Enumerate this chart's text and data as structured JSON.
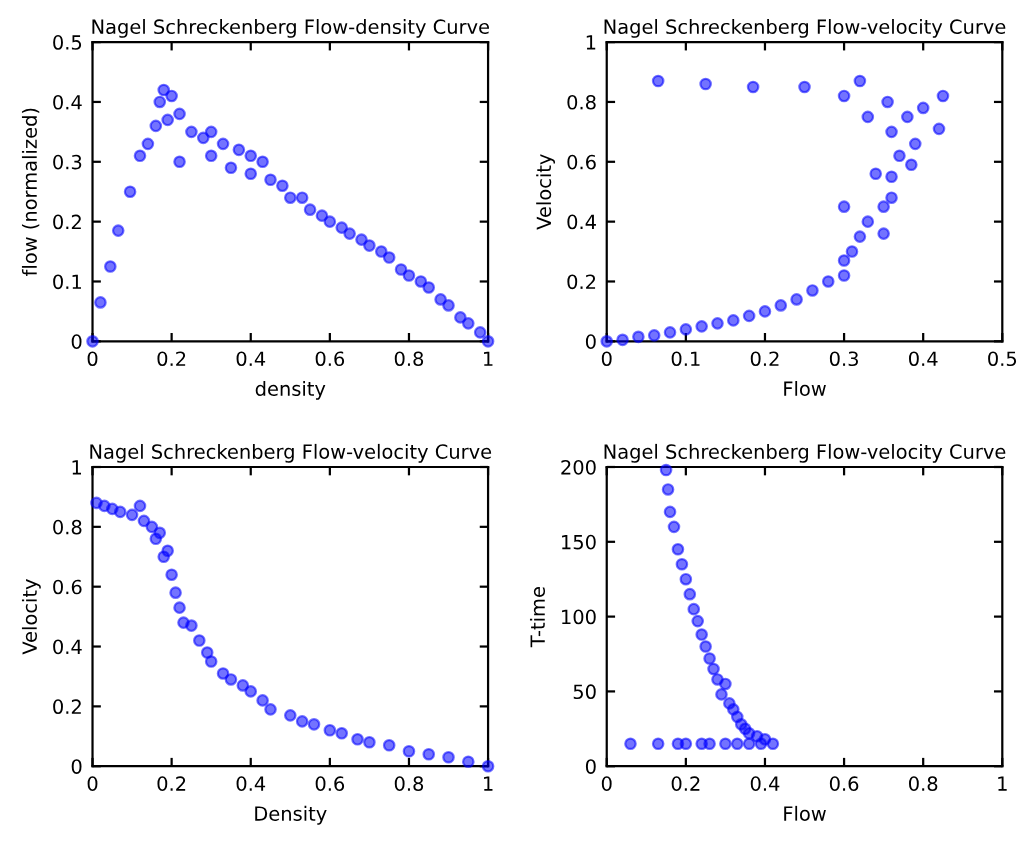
{
  "chart_data": [
    {
      "type": "scatter",
      "title": "Nagel Schreckenberg Flow-density Curve",
      "xlabel": "density",
      "ylabel": "flow (normalized)",
      "color": "#0000ff",
      "marker": "circle",
      "xlim": [
        0,
        1
      ],
      "ylim": [
        0,
        0.5
      ],
      "xticks": [
        0,
        0.2,
        0.4,
        0.6,
        0.8,
        1
      ],
      "yticks": [
        0,
        0.1,
        0.2,
        0.3,
        0.4,
        0.5
      ],
      "x": [
        0,
        0.02,
        0.045,
        0.065,
        0.095,
        0.12,
        0.14,
        0.16,
        0.17,
        0.18,
        0.2,
        0.19,
        0.22,
        0.22,
        0.25,
        0.28,
        0.3,
        0.3,
        0.33,
        0.35,
        0.37,
        0.4,
        0.4,
        0.43,
        0.45,
        0.48,
        0.5,
        0.53,
        0.55,
        0.58,
        0.6,
        0.63,
        0.65,
        0.68,
        0.7,
        0.73,
        0.75,
        0.78,
        0.8,
        0.83,
        0.85,
        0.88,
        0.9,
        0.93,
        0.95,
        0.98,
        1.0
      ],
      "values": [
        0,
        0.065,
        0.125,
        0.185,
        0.25,
        0.31,
        0.33,
        0.36,
        0.4,
        0.42,
        0.41,
        0.37,
        0.38,
        0.3,
        0.35,
        0.34,
        0.35,
        0.31,
        0.33,
        0.29,
        0.32,
        0.31,
        0.28,
        0.3,
        0.27,
        0.26,
        0.24,
        0.24,
        0.22,
        0.21,
        0.2,
        0.19,
        0.18,
        0.17,
        0.16,
        0.15,
        0.14,
        0.12,
        0.11,
        0.1,
        0.09,
        0.07,
        0.06,
        0.04,
        0.03,
        0.015,
        0
      ]
    },
    {
      "type": "scatter",
      "title": "Nagel Schreckenberg Flow-velocity Curve",
      "xlabel": "Flow",
      "ylabel": "Velocity",
      "color": "#0000ff",
      "marker": "circle",
      "xlim": [
        0,
        0.5
      ],
      "ylim": [
        0,
        1
      ],
      "xticks": [
        0,
        0.1,
        0.2,
        0.3,
        0.4,
        0.5
      ],
      "yticks": [
        0,
        0.2,
        0.4,
        0.6,
        0.8,
        1
      ],
      "x": [
        0.065,
        0.125,
        0.185,
        0.25,
        0.3,
        0.32,
        0.33,
        0.355,
        0.36,
        0.38,
        0.4,
        0.425,
        0.37,
        0.39,
        0.42,
        0.385,
        0.36,
        0.34,
        0.36,
        0.35,
        0.3,
        0.33,
        0.35,
        0.32,
        0.31,
        0.3,
        0.3,
        0.28,
        0.26,
        0.24,
        0.22,
        0.2,
        0.18,
        0.16,
        0.14,
        0.12,
        0.1,
        0.08,
        0.06,
        0.04,
        0.02,
        0
      ],
      "values": [
        0.87,
        0.86,
        0.85,
        0.85,
        0.82,
        0.87,
        0.75,
        0.8,
        0.7,
        0.75,
        0.78,
        0.82,
        0.62,
        0.66,
        0.71,
        0.59,
        0.55,
        0.56,
        0.48,
        0.45,
        0.45,
        0.4,
        0.36,
        0.35,
        0.3,
        0.27,
        0.22,
        0.2,
        0.17,
        0.14,
        0.12,
        0.1,
        0.085,
        0.07,
        0.06,
        0.05,
        0.04,
        0.03,
        0.02,
        0.015,
        0.005,
        0
      ]
    },
    {
      "type": "scatter",
      "title": "Nagel Schreckenberg Flow-velocity Curve",
      "xlabel": "Density",
      "ylabel": "Velocity",
      "color": "#0000ff",
      "marker": "circle",
      "xlim": [
        0,
        1
      ],
      "ylim": [
        0,
        1
      ],
      "xticks": [
        0,
        0.2,
        0.4,
        0.6,
        0.8,
        1
      ],
      "yticks": [
        0,
        0.2,
        0.4,
        0.6,
        0.8,
        1
      ],
      "x": [
        0.01,
        0.03,
        0.05,
        0.07,
        0.1,
        0.12,
        0.13,
        0.15,
        0.16,
        0.17,
        0.18,
        0.19,
        0.2,
        0.21,
        0.22,
        0.23,
        0.25,
        0.27,
        0.29,
        0.3,
        0.33,
        0.35,
        0.38,
        0.4,
        0.43,
        0.45,
        0.5,
        0.53,
        0.56,
        0.6,
        0.63,
        0.67,
        0.7,
        0.75,
        0.8,
        0.85,
        0.9,
        0.95,
        1.0
      ],
      "values": [
        0.88,
        0.87,
        0.86,
        0.85,
        0.84,
        0.87,
        0.82,
        0.8,
        0.76,
        0.78,
        0.7,
        0.72,
        0.64,
        0.58,
        0.53,
        0.48,
        0.47,
        0.42,
        0.38,
        0.35,
        0.31,
        0.29,
        0.27,
        0.25,
        0.22,
        0.19,
        0.17,
        0.15,
        0.14,
        0.12,
        0.11,
        0.09,
        0.08,
        0.07,
        0.05,
        0.04,
        0.03,
        0.015,
        0
      ]
    },
    {
      "type": "scatter",
      "title": "Nagel Schreckenberg Flow-velocity Curve",
      "xlabel": "Flow",
      "ylabel": "T-time",
      "color": "#0000ff",
      "marker": "circle",
      "xlim": [
        0,
        1
      ],
      "ylim": [
        0,
        200
      ],
      "xticks": [
        0,
        0.2,
        0.4,
        0.6,
        0.8,
        1
      ],
      "yticks": [
        0,
        50,
        100,
        150,
        200
      ],
      "x": [
        0.06,
        0.13,
        0.18,
        0.2,
        0.24,
        0.26,
        0.3,
        0.33,
        0.36,
        0.39,
        0.42,
        0.15,
        0.155,
        0.16,
        0.17,
        0.18,
        0.19,
        0.2,
        0.21,
        0.22,
        0.23,
        0.24,
        0.25,
        0.26,
        0.27,
        0.28,
        0.3,
        0.29,
        0.31,
        0.32,
        0.33,
        0.34,
        0.35,
        0.36,
        0.38,
        0.4
      ],
      "values": [
        15,
        15,
        15,
        15,
        15,
        15,
        15,
        15,
        15,
        15,
        15,
        198,
        185,
        170,
        160,
        145,
        135,
        125,
        115,
        105,
        97,
        88,
        80,
        72,
        65,
        58,
        55,
        48,
        42,
        38,
        33,
        28,
        25,
        22,
        20,
        18
      ]
    }
  ]
}
